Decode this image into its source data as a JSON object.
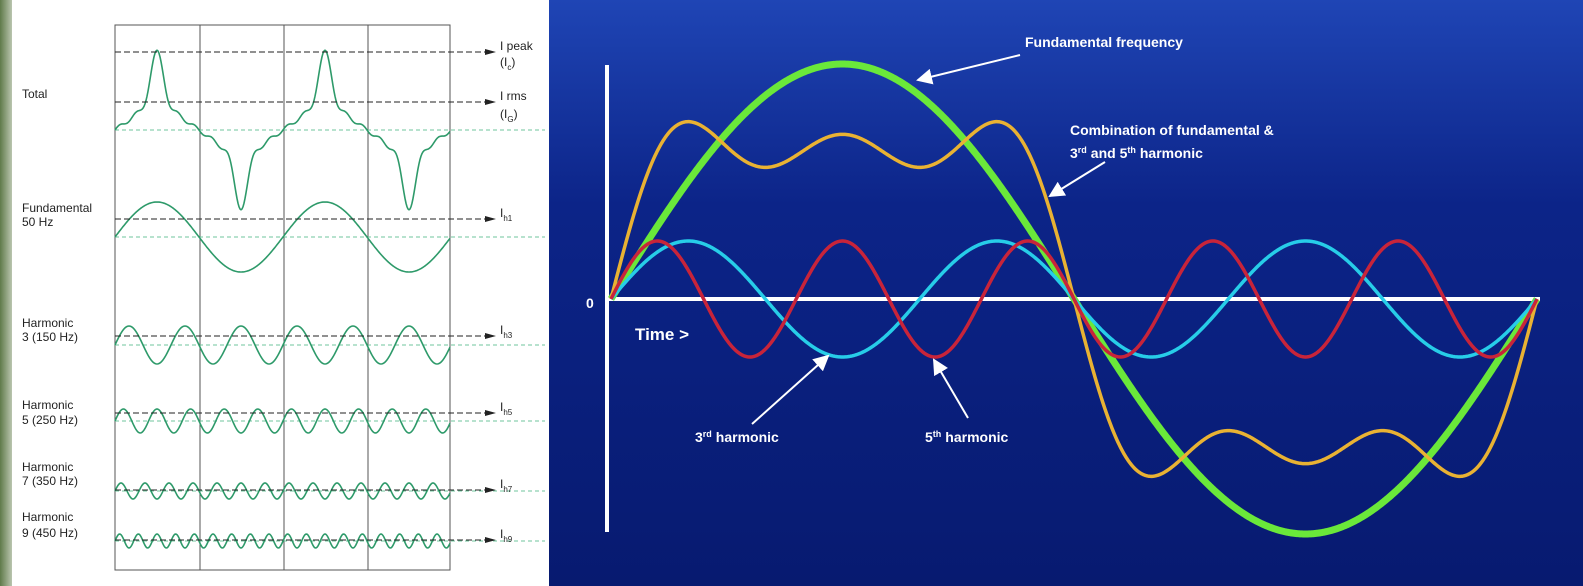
{
  "left_panel": {
    "row_labels": [
      [
        "Total"
      ],
      [
        "Fundamental",
        "50 Hz"
      ],
      [
        "Harmonic",
        "3 (150 Hz)"
      ],
      [
        "Harmonic",
        "5 (250 Hz)"
      ],
      [
        "Harmonic",
        "7 (350 Hz)"
      ],
      [
        "Harmonic",
        "9 (450 Hz)"
      ]
    ],
    "level_labels": [
      {
        "text": "I peak"
      },
      {
        "text": "(I",
        "sub": "c",
        "end": ")"
      },
      {
        "text": "I rms"
      },
      {
        "text": "(I",
        "sub": "G",
        "end": ")"
      },
      {
        "text": "I",
        "sub": "h1"
      },
      {
        "text": "I",
        "sub": "h3"
      },
      {
        "text": "I",
        "sub": "h5"
      },
      {
        "text": "I",
        "sub": "h7"
      },
      {
        "text": "I",
        "sub": "h9"
      }
    ]
  },
  "right_panel": {
    "fundamental_label": "Fundamental frequency",
    "combination_line1": "Combination of fundamental &",
    "combination_line2": {
      "a": "3",
      "a_sup": "rd",
      "b": "and 5",
      "b_sup": "th",
      "c": "harmonic"
    },
    "zero_label": "0",
    "time_label": "Time >",
    "third_label": {
      "a": "3",
      "sup": "rd",
      "b": "harmonic"
    },
    "fifth_label": {
      "a": "5",
      "sup": "th",
      "b": "harmonic"
    }
  }
}
